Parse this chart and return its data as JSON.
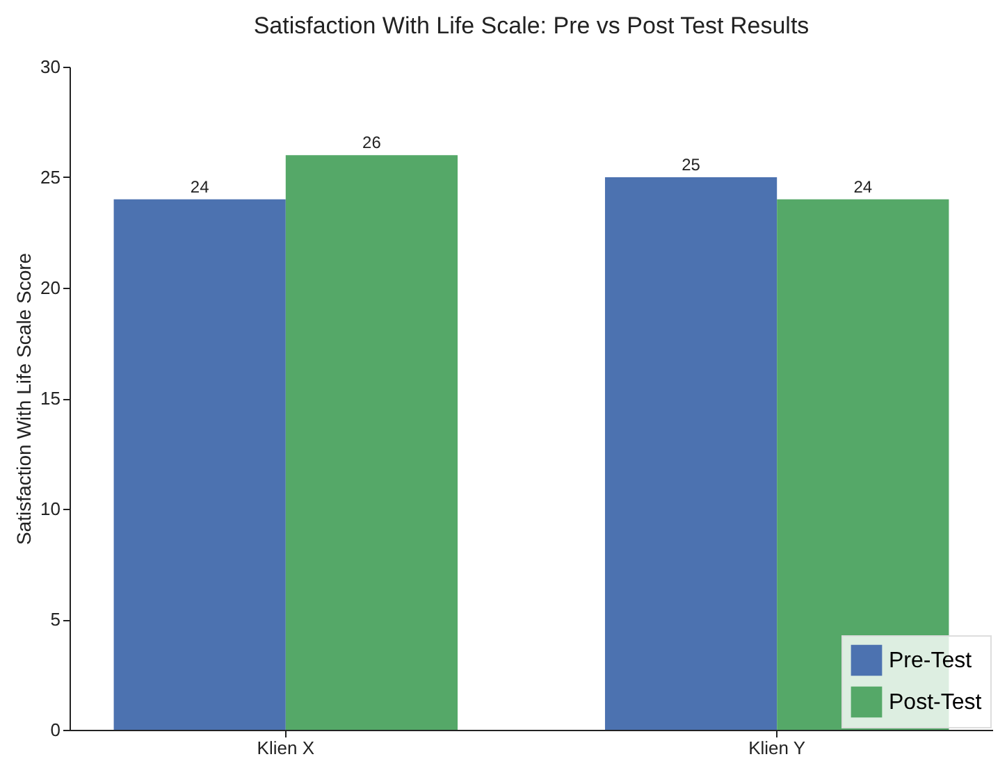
{
  "chart_data": {
    "type": "bar",
    "title": "Satisfaction With Life Scale: Pre vs Post Test Results",
    "ylabel": "Satisfaction With Life Scale Score",
    "categories": [
      "Klien X",
      "Klien Y"
    ],
    "series": [
      {
        "name": "Pre-Test",
        "color": "#4c72b0",
        "values": [
          24,
          25
        ]
      },
      {
        "name": "Post-Test",
        "color": "#55a868",
        "values": [
          26,
          24
        ]
      }
    ],
    "ylim": [
      0,
      30
    ],
    "yticks": [
      0,
      5,
      10,
      15,
      20,
      25,
      30
    ],
    "data_labels": true,
    "legend": "bottom right",
    "grid": false
  }
}
